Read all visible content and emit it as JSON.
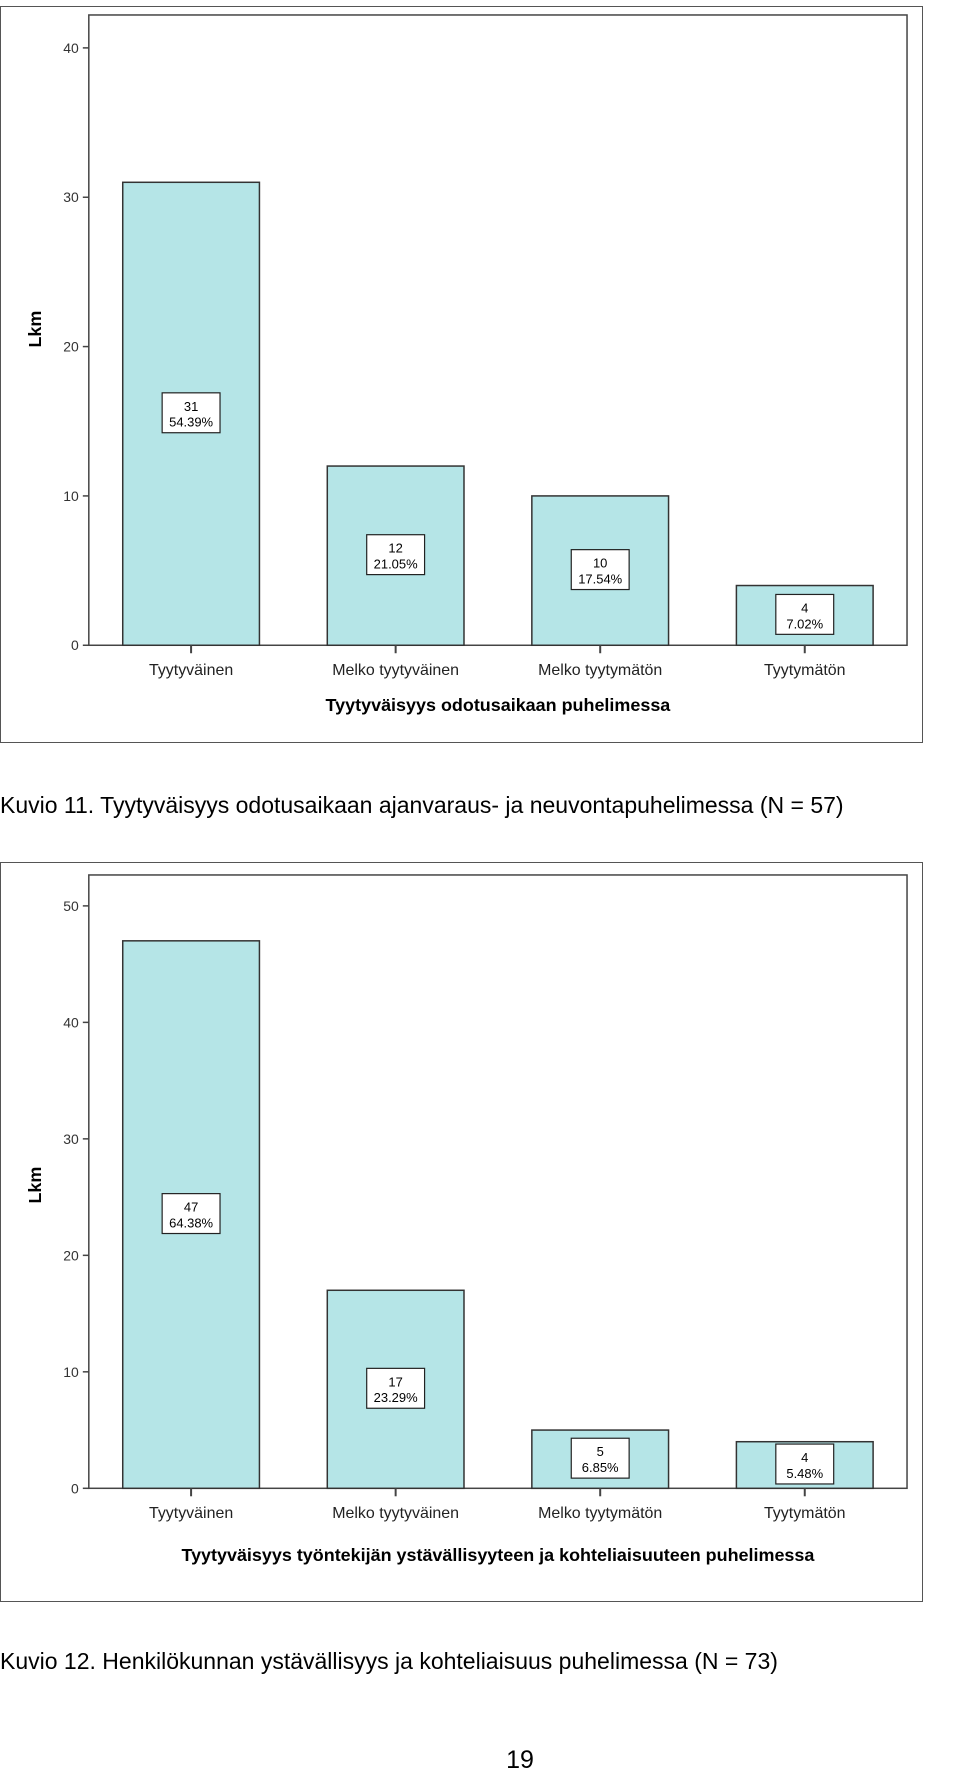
{
  "figures": [
    {
      "caption": "Kuvio 11. Tyytyväisyys odotusaikaan ajanvaraus- ja neuvontapuhelimessa (N = 57)",
      "chart_data": {
        "type": "bar",
        "categories": [
          "Tyytyväinen",
          "Melko tyytyväinen",
          "Melko tyytymätön",
          "Tyytymätön"
        ],
        "values": [
          31,
          12,
          10,
          4
        ],
        "percent_labels": [
          "54.39%",
          "21.05%",
          "17.54%",
          "7.02%"
        ],
        "xlabel": "Tyytyväisyys odotusaikaan puhelimessa",
        "ylabel": "Lkm",
        "ylim": [
          0,
          40
        ],
        "yticks": [
          0,
          10,
          20,
          30,
          40
        ],
        "bar_color": "#b5e5e7",
        "grid": false
      }
    },
    {
      "caption": "Kuvio 12. Henkilökunnan ystävällisyys ja kohteliaisuus puhelimessa (N = 73)",
      "chart_data": {
        "type": "bar",
        "categories": [
          "Tyytyväinen",
          "Melko tyytyväinen",
          "Melko tyytymätön",
          "Tyytymätön"
        ],
        "values": [
          47,
          17,
          5,
          4
        ],
        "percent_labels": [
          "64.38%",
          "23.29%",
          "6.85%",
          "5.48%"
        ],
        "xlabel": "Tyytyväisyys työntekijän ystävällisyyteen ja kohteliaisuuteen puhelimessa",
        "ylabel": "Lkm",
        "ylim": [
          0,
          50
        ],
        "yticks": [
          0,
          10,
          20,
          30,
          40,
          50
        ],
        "bar_color": "#b5e5e7",
        "grid": false
      }
    }
  ],
  "page_number": "19"
}
